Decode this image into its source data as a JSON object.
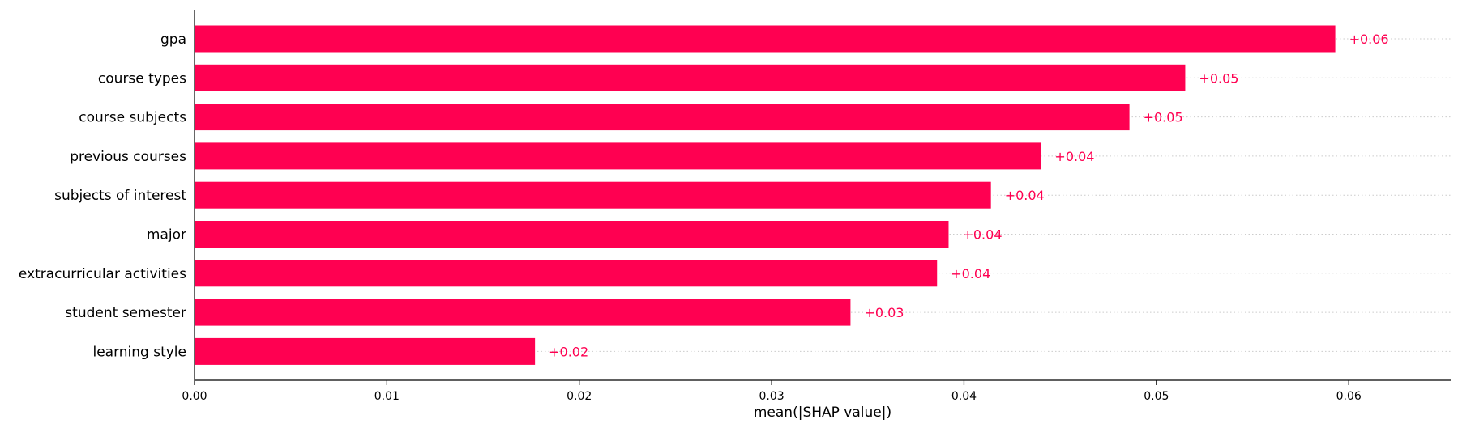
{
  "chart_data": {
    "type": "bar",
    "orientation": "horizontal",
    "categories": [
      "gpa",
      "course types",
      "course subjects",
      "previous courses",
      "subjects of interest",
      "major",
      "extracurricular activities",
      "student semester",
      "learning style"
    ],
    "values": [
      0.0593,
      0.0515,
      0.0486,
      0.044,
      0.0414,
      0.0392,
      0.0386,
      0.0341,
      0.0177
    ],
    "value_labels": [
      "+0.06",
      "+0.05",
      "+0.05",
      "+0.04",
      "+0.04",
      "+0.04",
      "+0.04",
      "+0.03",
      "+0.02"
    ],
    "xticks": [
      0.0,
      0.01,
      0.02,
      0.03,
      0.04,
      0.05,
      0.06
    ],
    "xtick_labels": [
      "0.00",
      "0.01",
      "0.02",
      "0.03",
      "0.04",
      "0.05",
      "0.06"
    ],
    "xlim": [
      0,
      0.0653
    ],
    "xlabel": "mean(|SHAP value|)",
    "ylabel": "",
    "title": "",
    "grid": false,
    "legend": "none",
    "colors": {
      "bar": "#ff0051",
      "label": "#ff0051",
      "axis": "#000000",
      "guide": "#cccccc"
    }
  }
}
